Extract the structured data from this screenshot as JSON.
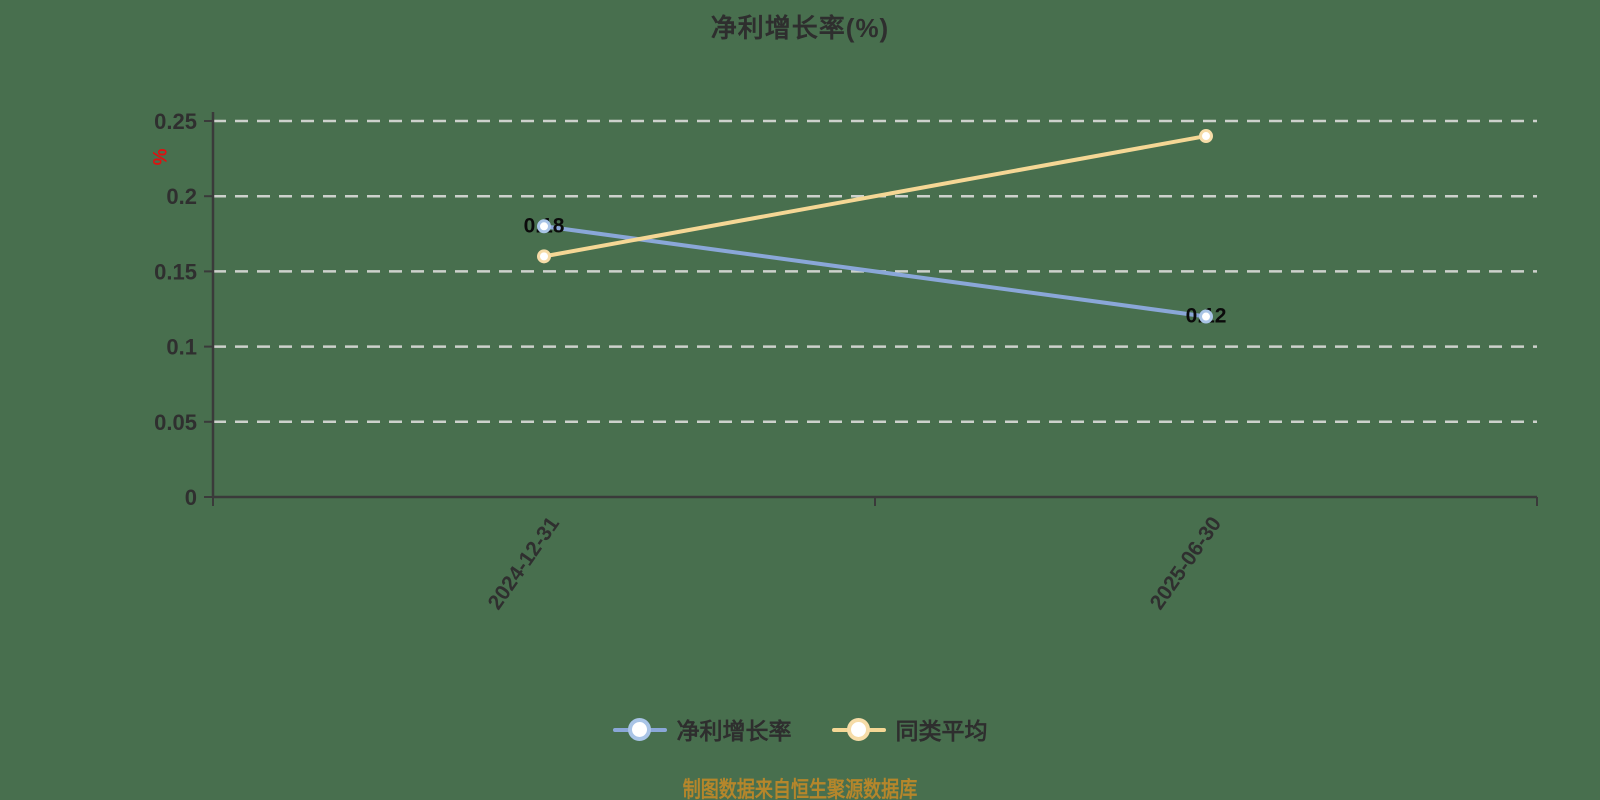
{
  "chart_data": {
    "type": "line",
    "title": "净利增长率(%)",
    "y_unit": "%",
    "categories": [
      "2024-12-31",
      "2025-06-30"
    ],
    "series": [
      {
        "name": "净利增长率",
        "values": [
          0.18,
          0.12
        ],
        "data_labels": [
          "0.18",
          "0.12"
        ],
        "show_labels": true,
        "color": "#8AA7D8",
        "marker_ring": "#A9C4E6"
      },
      {
        "name": "同类平均",
        "values": [
          0.16,
          0.24
        ],
        "data_labels": null,
        "show_labels": false,
        "color": "#F5D795",
        "marker_ring": "#F6DCA8"
      }
    ],
    "ylim": [
      0,
      0.25
    ],
    "y_ticks": [
      0,
      0.05,
      0.1,
      0.15,
      0.2,
      0.25
    ],
    "y_tick_labels": [
      "0",
      "0.05",
      "0.1",
      "0.15",
      "0.2",
      "0.25"
    ],
    "grid": "horizontal-dashed",
    "legend_position": "bottom",
    "marker_style": "hollow-circle"
  },
  "caption": "制图数据来自恒生聚源数据库",
  "colors": {
    "background": "#486F4E",
    "axis": "#3A3A3A",
    "gridline": "#CDD1CC",
    "title_text": "#2E2E2E",
    "y_unit_red": "#E01010",
    "caption_orange": "#B5862B",
    "series_blue": "#8AA7D8",
    "series_yellow": "#F5D795"
  }
}
